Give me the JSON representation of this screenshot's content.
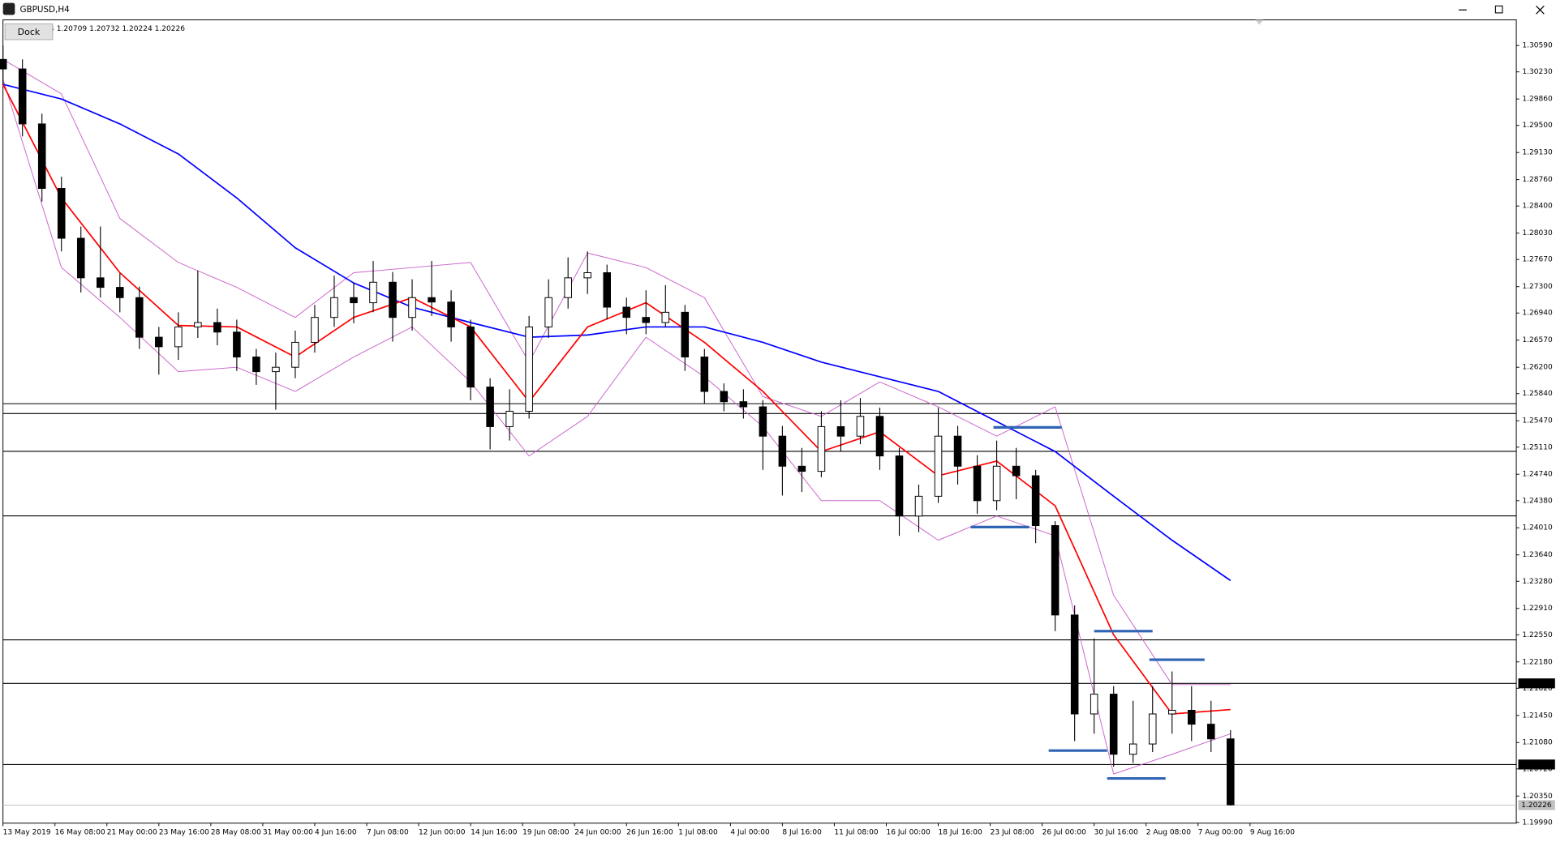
{
  "window": {
    "title": "GBPUSD,H4",
    "info": "4  1.20709 1.20732 1.20224 1.20226",
    "dock": "Dock"
  },
  "chart_data": {
    "type": "candlestick",
    "x": [
      0,
      6,
      12,
      18,
      24,
      30,
      36,
      42,
      48,
      54,
      60,
      66,
      72,
      78,
      84,
      90,
      96,
      102,
      108,
      114,
      120,
      126,
      132,
      138,
      144,
      150,
      156,
      162,
      168,
      174,
      180,
      186,
      192,
      198,
      204,
      210,
      216,
      222,
      228,
      234,
      240,
      246,
      252,
      258,
      264,
      270,
      276,
      282,
      288,
      294,
      300,
      306,
      312,
      318,
      324,
      330,
      336,
      342,
      348,
      354,
      360,
      366,
      372,
      378
    ],
    "open": [
      1.304,
      1.3027,
      1.2952,
      1.2864,
      1.2796,
      1.2742,
      1.2729,
      1.2715,
      1.2661,
      1.2648,
      1.2675,
      1.2681,
      1.2668,
      1.2634,
      1.2614,
      1.262,
      1.2654,
      1.2688,
      1.2715,
      1.2708,
      1.2736,
      1.2688,
      1.2715,
      1.2709,
      1.2675,
      1.2593,
      1.2539,
      1.256,
      1.2675,
      1.2715,
      1.2742,
      1.2749,
      1.2702,
      1.2688,
      1.2681,
      1.2695,
      1.2634,
      1.2587,
      1.2573,
      1.2566,
      1.2526,
      1.2485,
      1.2478,
      1.2539,
      1.2526,
      1.2553,
      1.2499,
      1.2417,
      1.2444,
      1.2526,
      1.2485,
      1.2438,
      1.2485,
      1.2472,
      1.2404,
      1.2282,
      1.2147,
      1.2174,
      1.2092,
      1.2106,
      1.2147,
      1.2152,
      1.2133,
      1.2113
    ],
    "high": [
      1.3059,
      1.304,
      1.2966,
      1.288,
      1.2812,
      1.2812,
      1.2748,
      1.273,
      1.2675,
      1.2695,
      1.2752,
      1.27,
      1.2685,
      1.2645,
      1.264,
      1.267,
      1.2705,
      1.2745,
      1.2735,
      1.2765,
      1.275,
      1.274,
      1.2765,
      1.2725,
      1.2685,
      1.2605,
      1.259,
      1.269,
      1.274,
      1.277,
      1.2778,
      1.276,
      1.2715,
      1.2725,
      1.2732,
      1.2705,
      1.2645,
      1.2598,
      1.259,
      1.2575,
      1.254,
      1.251,
      1.256,
      1.2575,
      1.2578,
      1.2565,
      1.251,
      1.246,
      1.2565,
      1.254,
      1.25,
      1.252,
      1.251,
      1.248,
      1.241,
      1.2295,
      1.225,
      1.2185,
      1.2165,
      1.2185,
      1.2205,
      1.2185,
      1.2165,
      1.2125
    ],
    "low": [
      1.3005,
      1.2935,
      1.2846,
      1.2778,
      1.2722,
      1.2715,
      1.2695,
      1.2645,
      1.261,
      1.263,
      1.266,
      1.265,
      1.2615,
      1.2596,
      1.2562,
      1.2605,
      1.264,
      1.2675,
      1.268,
      1.2695,
      1.2655,
      1.267,
      1.269,
      1.2655,
      1.2575,
      1.2508,
      1.252,
      1.255,
      1.266,
      1.27,
      1.272,
      1.2685,
      1.2665,
      1.2665,
      1.2675,
      1.2615,
      1.257,
      1.256,
      1.255,
      1.248,
      1.2445,
      1.245,
      1.247,
      1.2505,
      1.2515,
      1.248,
      1.239,
      1.2395,
      1.2435,
      1.246,
      1.242,
      1.2425,
      1.244,
      1.238,
      1.226,
      1.211,
      1.212,
      1.2075,
      1.208,
      1.2095,
      1.212,
      1.211,
      1.2095,
      1.2022
    ],
    "close": [
      1.3027,
      1.2952,
      1.2864,
      1.2796,
      1.2742,
      1.2729,
      1.2715,
      1.2661,
      1.2648,
      1.2675,
      1.2681,
      1.2668,
      1.2634,
      1.2614,
      1.262,
      1.2654,
      1.2688,
      1.2715,
      1.2708,
      1.2736,
      1.2688,
      1.2715,
      1.2709,
      1.2675,
      1.2593,
      1.2539,
      1.256,
      1.2675,
      1.2715,
      1.2742,
      1.2749,
      1.2702,
      1.2688,
      1.2681,
      1.2695,
      1.2634,
      1.2587,
      1.2573,
      1.2566,
      1.2526,
      1.2485,
      1.2478,
      1.2539,
      1.2526,
      1.2553,
      1.2499,
      1.2417,
      1.2444,
      1.2526,
      1.2485,
      1.2438,
      1.2485,
      1.2472,
      1.2404,
      1.2282,
      1.2147,
      1.2174,
      1.2092,
      1.2106,
      1.2147,
      1.2152,
      1.2133,
      1.2113,
      1.2023
    ],
    "bull_color": "#ffffff",
    "bear_color": "#000000",
    "overlays": [
      {
        "color": "#cc66cc",
        "x": [
          0,
          18,
          36,
          54,
          72,
          90,
          108,
          126,
          144,
          162,
          180,
          198,
          216,
          234,
          252,
          270,
          288,
          306,
          324,
          342,
          360,
          378
        ],
        "values": [
          1.304,
          1.2993,
          1.2823,
          1.2763,
          1.2729,
          1.2688,
          1.2749,
          1.2756,
          1.2763,
          1.2627,
          1.2776,
          1.2756,
          1.2715,
          1.258,
          1.2553,
          1.26,
          1.2566,
          1.2526,
          1.2566,
          1.2309,
          1.2187,
          1.2187
        ]
      },
      {
        "color": "#cc66cc",
        "x": [
          0,
          18,
          36,
          54,
          72,
          90,
          108,
          126,
          144,
          162,
          180,
          198,
          216,
          234,
          252,
          270,
          288,
          306,
          324,
          342,
          360,
          378
        ],
        "values": [
          1.3013,
          1.2756,
          1.2688,
          1.2614,
          1.262,
          1.2587,
          1.2634,
          1.2675,
          1.26,
          1.2499,
          1.2553,
          1.2661,
          1.2607,
          1.2539,
          1.2438,
          1.2438,
          1.2384,
          1.2417,
          1.239,
          1.2065,
          1.2092,
          1.212
        ]
      },
      {
        "color": "#0000ff",
        "x": [
          0,
          18,
          36,
          54,
          72,
          90,
          108,
          126,
          144,
          162,
          180,
          198,
          216,
          234,
          252,
          270,
          288,
          306,
          324,
          342,
          360,
          378
        ],
        "values": [
          1.3006,
          1.2986,
          1.2952,
          1.2911,
          1.2851,
          1.2783,
          1.2735,
          1.2702,
          1.2681,
          1.2661,
          1.2664,
          1.2675,
          1.2675,
          1.2654,
          1.2627,
          1.2607,
          1.2587,
          1.2546,
          1.2505,
          1.2444,
          1.2384,
          1.2329
        ]
      },
      {
        "color": "#ff0000",
        "x": [
          0,
          18,
          36,
          54,
          72,
          90,
          108,
          126,
          144,
          162,
          180,
          198,
          216,
          234,
          252,
          270,
          288,
          306,
          324,
          342,
          360,
          378
        ],
        "values": [
          1.3006,
          1.2851,
          1.2749,
          1.2677,
          1.2675,
          1.2634,
          1.2688,
          1.2715,
          1.2675,
          1.2573,
          1.2675,
          1.2708,
          1.2654,
          1.2587,
          1.2505,
          1.2532,
          1.2472,
          1.2492,
          1.2431,
          1.2255,
          1.2147,
          1.2153
        ]
      }
    ],
    "levels": [
      1.25703,
      1.25568,
      1.25053,
      1.24173,
      1.22481,
      1.21887,
      1.2078
    ],
    "level_color": "#000000",
    "current_price": 1.20226,
    "current_color": "#c0c0c0",
    "price_tags": [
      1.21887,
      {
        "value": 1.2078,
        "label": "1.20780"
      }
    ],
    "trendline_color": "#2f64b4",
    "trendlines": [
      {
        "x": [
          305,
          326
        ],
        "value": 1.2538
      },
      {
        "x": [
          298,
          316
        ],
        "value": 1.2402
      },
      {
        "x": [
          336,
          354
        ],
        "value": 1.226
      },
      {
        "x": [
          353,
          370
        ],
        "value": 1.2221
      },
      {
        "x": [
          322,
          340
        ],
        "value": 1.2097
      },
      {
        "x": [
          340,
          358
        ],
        "value": 1.2059
      }
    ],
    "xlim": [
      0,
      466
    ],
    "ylim": [
      1.1998,
      1.3094
    ],
    "xticks": [
      {
        "value": 0,
        "label": "13 May 2019"
      },
      {
        "value": 16,
        "label": "16 May 08:00"
      },
      {
        "value": 32,
        "label": "21 May 00:00"
      },
      {
        "value": 48,
        "label": "23 May 16:00"
      },
      {
        "value": 64,
        "label": "28 May 08:00"
      },
      {
        "value": 80,
        "label": "31 May 00:00"
      },
      {
        "value": 96,
        "label": "4 Jun 16:00"
      },
      {
        "value": 112,
        "label": "7 Jun 08:00"
      },
      {
        "value": 128,
        "label": "12 Jun 00:00"
      },
      {
        "value": 144,
        "label": "14 Jun 16:00"
      },
      {
        "value": 160,
        "label": "19 Jun 08:00"
      },
      {
        "value": 176,
        "label": "24 Jun 00:00"
      },
      {
        "value": 192,
        "label": "26 Jun 16:00"
      },
      {
        "value": 208,
        "label": "1 Jul 08:00"
      },
      {
        "value": 224,
        "label": "4 Jul 00:00"
      },
      {
        "value": 240,
        "label": "8 Jul 16:00"
      },
      {
        "value": 256,
        "label": "11 Jul 08:00"
      },
      {
        "value": 272,
        "label": "16 Jul 00:00"
      },
      {
        "value": 288,
        "label": "18 Jul 16:00"
      },
      {
        "value": 304,
        "label": "23 Jul 08:00"
      },
      {
        "value": 320,
        "label": "26 Jul 00:00"
      },
      {
        "value": 336,
        "label": "30 Jul 16:00"
      },
      {
        "value": 352,
        "label": "2 Aug 08:00"
      },
      {
        "value": 368,
        "label": "7 Aug 00:00"
      },
      {
        "value": 384,
        "label": "9 Aug 16:00"
      }
    ],
    "yticks": [
      {
        "value": 1.3059,
        "label": "1.30590"
      },
      {
        "value": 1.3023,
        "label": "1.30230"
      },
      {
        "value": 1.2986,
        "label": "1.29860"
      },
      {
        "value": 1.295,
        "label": "1.29500"
      },
      {
        "value": 1.2913,
        "label": "1.29130"
      },
      {
        "value": 1.2876,
        "label": "1.28760"
      },
      {
        "value": 1.284,
        "label": "1.28400"
      },
      {
        "value": 1.2803,
        "label": "1.28030"
      },
      {
        "value": 1.2767,
        "label": "1.27670"
      },
      {
        "value": 1.273,
        "label": "1.27300"
      },
      {
        "value": 1.2694,
        "label": "1.26940"
      },
      {
        "value": 1.2657,
        "label": "1.26570"
      },
      {
        "value": 1.262,
        "label": "1.26200"
      },
      {
        "value": 1.2584,
        "label": "1.25840"
      },
      {
        "value": 1.2547,
        "label": "1.25470"
      },
      {
        "value": 1.2511,
        "label": "1.25110"
      },
      {
        "value": 1.2474,
        "label": "1.24740"
      },
      {
        "value": 1.2438,
        "label": "1.24380"
      },
      {
        "value": 1.2401,
        "label": "1.24010"
      },
      {
        "value": 1.2364,
        "label": "1.23640"
      },
      {
        "value": 1.2328,
        "label": "1.23280"
      },
      {
        "value": 1.2291,
        "label": "1.22910"
      },
      {
        "value": 1.2255,
        "label": "1.22550"
      },
      {
        "value": 1.2218,
        "label": "1.22180"
      },
      {
        "value": 1.2182,
        "label": "1.21820"
      },
      {
        "value": 1.2145,
        "label": "1.21450"
      },
      {
        "value": 1.2108,
        "label": "1.21080"
      },
      {
        "value": 1.2072,
        "label": "1.20720"
      },
      {
        "value": 1.2035,
        "label": "1.20350"
      },
      {
        "value": 1.1999,
        "label": "1.19990"
      }
    ]
  }
}
